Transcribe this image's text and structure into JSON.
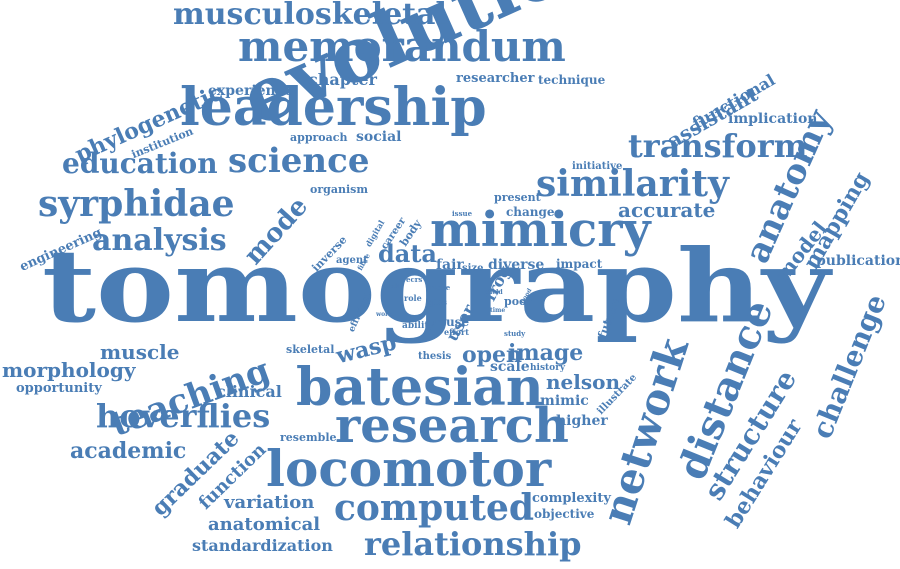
{
  "color": "#4A7DB5",
  "words": [
    "tomography",
    "evolution",
    "leadership",
    "memorandum",
    "musculoskeletal",
    "mimicry",
    "batesian",
    "research",
    "locomotor",
    "similarity",
    "science",
    "syrphidae",
    "analysis",
    "education",
    "transform",
    "network",
    "distance",
    "anatomy",
    "hoverflies",
    "teaching",
    "computed",
    "relationship",
    "structure",
    "challenge",
    "phylogenetic",
    "assistant",
    "behaviour",
    "mapping",
    "model",
    "accurate",
    "data",
    "mode",
    "graduate",
    "function",
    "academic",
    "muscle",
    "morphology",
    "wasp",
    "image",
    "open",
    "nelson",
    "variation",
    "anatomical",
    "standardization",
    "complexity",
    "objective",
    "publication",
    "functional",
    "implication",
    "experience",
    "chapter",
    "researcher",
    "technique",
    "institution",
    "approach",
    "social",
    "organism",
    "engineering",
    "opportunity",
    "clinical",
    "skeletal",
    "resemble",
    "thesis",
    "history",
    "scale",
    "mimic",
    "higher",
    "illustrate",
    "future",
    "frog",
    "diverse",
    "impact",
    "fair",
    "size",
    "poor",
    "reuse",
    "ability",
    "effort",
    "study",
    "role",
    "gtas",
    "ecrs",
    "more",
    "agent",
    "fibre",
    "body",
    "career",
    "digital",
    "inverse",
    "efficient",
    "work",
    "field",
    "time",
    "good",
    "issue",
    "present",
    "change",
    "initiative",
    "user",
    "adult"
  ]
}
